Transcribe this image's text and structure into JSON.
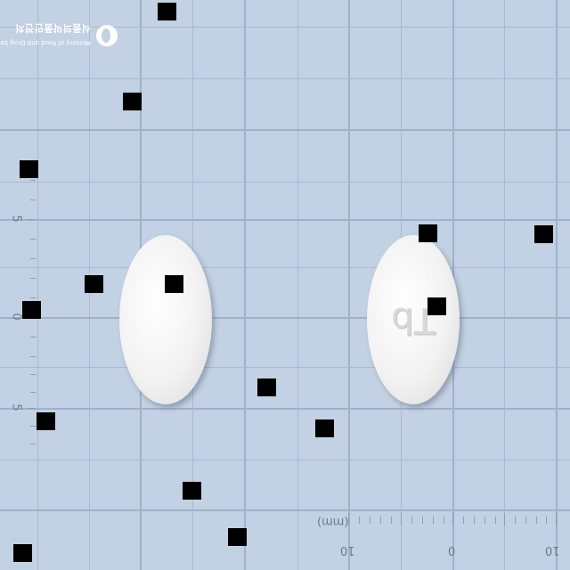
{
  "logo": {
    "line1": "Ministry of Food and Drug Safety",
    "line2": "식품의약품안전처",
    "icon": "mfds-emblem-icon"
  },
  "scale": {
    "unit_label": "(mm)",
    "horizontal": [
      "10",
      "0",
      "10"
    ],
    "vertical": [
      "5",
      "0",
      "5"
    ]
  },
  "pills": {
    "left_imprint": "",
    "right_imprint": "Tb"
  },
  "colors": {
    "background": "#c2d1e3",
    "grid": "#a9bbd1",
    "pill": "#f2f2f2",
    "redaction": "#000000"
  }
}
